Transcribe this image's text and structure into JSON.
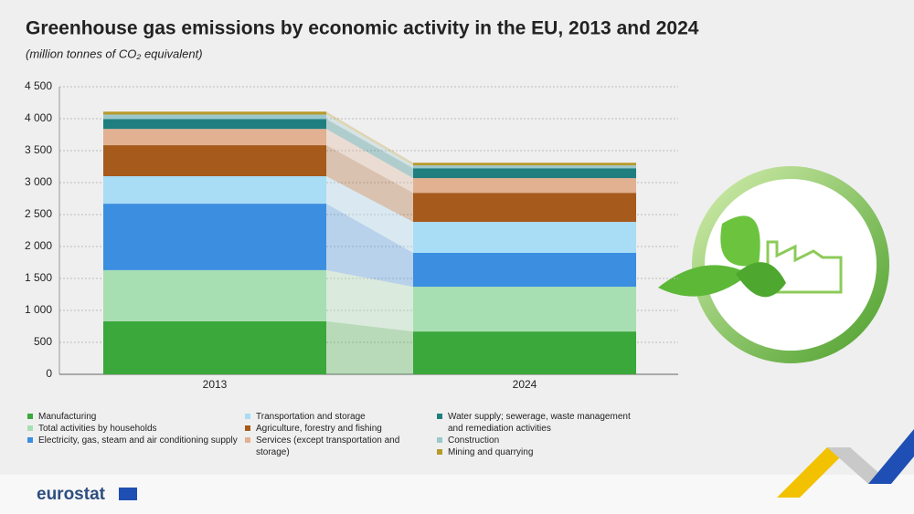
{
  "chart_data": {
    "type": "stacked_bar",
    "title": "Greenhouse gas emissions by economic activity in the EU, 2013 and 2024",
    "subtitle": "(million tonnes of CO₂ equivalent)",
    "categories": [
      "2013",
      "2024"
    ],
    "series": [
      {
        "name": "Manufacturing",
        "color": "#3aa83a",
        "values": [
          830,
          670
        ]
      },
      {
        "name": "Total activities by households",
        "color": "#a8dfb2",
        "values": [
          800,
          700
        ]
      },
      {
        "name": "Electricity, gas, steam and air conditioning supply",
        "color": "#3b8ee0",
        "values": [
          1040,
          530
        ]
      },
      {
        "name": "Transportation and storage",
        "color": "#a9dcf5",
        "values": [
          430,
          485
        ]
      },
      {
        "name": "Agriculture, forestry and fishing",
        "color": "#a65a1b",
        "values": [
          485,
          455
        ]
      },
      {
        "name": "Services (except transportation and storage)",
        "color": "#e2b192",
        "values": [
          255,
          230
        ]
      },
      {
        "name": "Water supply; sewerage, waste management and remediation activities",
        "color": "#1f7f7f",
        "values": [
          155,
          155
        ]
      },
      {
        "name": "Construction",
        "color": "#9cc8cc",
        "values": [
          70,
          45
        ]
      },
      {
        "name": "Mining and quarrying",
        "color": "#b79a2a",
        "values": [
          45,
          40
        ]
      }
    ],
    "ylim": [
      0,
      4500
    ],
    "yticks": [
      0,
      500,
      {
        "value": 1000,
        "label": "1 000"
      },
      {
        "value": 1500,
        "label": "1 500"
      },
      {
        "value": 2000,
        "label": "2 000"
      },
      {
        "value": 2500,
        "label": "2 500"
      },
      {
        "value": 3000,
        "label": "3 000"
      },
      {
        "value": 3500,
        "label": "3 500"
      },
      {
        "value": 4000,
        "label": "4 000"
      },
      {
        "value": 4500,
        "label": "4 500"
      }
    ],
    "grid": true,
    "source": "eurostat"
  }
}
